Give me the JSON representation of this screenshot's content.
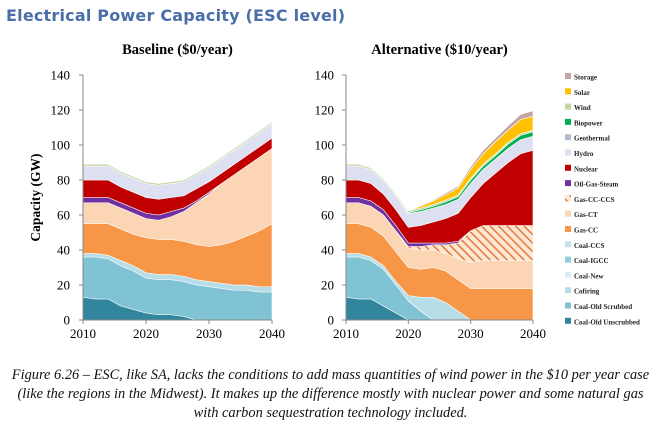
{
  "page": {
    "title": "Electrical Power Capacity (ESC level)",
    "caption": "Figure 6.26 – ESC, like SA, lacks the conditions to add mass quantities of wind power in the $10 per year case (like the regions in the Midwest). It makes up the difference mostly with nuclear power and some natural gas with carbon sequestration technology included."
  },
  "chart_data": [
    {
      "type": "area",
      "stacked": true,
      "title": "Baseline ($0/year)",
      "xlabel": "",
      "ylabel": "Capacity (GW)",
      "xlim": [
        2010,
        2040
      ],
      "ylim": [
        0,
        140
      ],
      "xticks": [
        2010,
        2020,
        2030,
        2040
      ],
      "yticks": [
        0,
        20,
        40,
        60,
        80,
        100,
        120,
        140
      ],
      "grid": false,
      "x": [
        2010,
        2012,
        2014,
        2016,
        2018,
        2020,
        2022,
        2024,
        2026,
        2028,
        2030,
        2032,
        2034,
        2036,
        2038,
        2040
      ],
      "series": [
        {
          "name": "Coal-Old Unscrubbed",
          "color": "#31859c",
          "values": [
            13,
            12,
            12,
            8,
            6,
            4,
            3,
            3,
            2,
            0,
            0,
            0,
            0,
            0,
            0,
            0
          ]
        },
        {
          "name": "Coal-Old Scrubbed",
          "color": "#7fc3d4",
          "values": [
            23,
            24,
            23,
            23,
            22,
            20,
            20,
            20,
            20,
            20,
            19,
            18,
            17,
            17,
            16,
            16
          ]
        },
        {
          "name": "Cofiring",
          "color": "#b7dee8",
          "values": [
            2,
            2,
            2,
            3,
            3,
            3,
            3,
            3,
            3,
            3,
            3,
            3,
            3,
            3,
            3,
            3
          ]
        },
        {
          "name": "Coal-New",
          "color": "#dbeef4",
          "values": [
            0,
            0,
            0,
            0,
            0,
            0,
            0,
            0,
            0,
            0,
            0,
            0,
            0,
            0,
            0,
            0
          ]
        },
        {
          "name": "Coal-IGCC",
          "color": "#92cddc",
          "values": [
            0,
            0,
            0,
            0,
            0,
            0,
            0,
            0,
            0,
            0,
            0,
            0,
            0,
            0,
            0,
            0
          ]
        },
        {
          "name": "Coal-CCS",
          "color": "#c5e3ec",
          "values": [
            0,
            0,
            0,
            0,
            0,
            0,
            0,
            0,
            0,
            0,
            0,
            0,
            0,
            0,
            0,
            0
          ]
        },
        {
          "name": "Gas-CC",
          "color": "#f79646",
          "values": [
            17,
            17,
            18,
            18,
            18,
            20,
            20,
            20,
            20,
            20,
            20,
            22,
            25,
            28,
            32,
            36
          ]
        },
        {
          "name": "Gas-CT",
          "color": "#fcd5b4",
          "values": [
            12,
            12,
            12,
            12,
            12,
            11,
            11,
            13,
            17,
            24,
            30,
            35,
            38,
            40,
            42,
            43
          ]
        },
        {
          "name": "Gas-CC-CCS",
          "color": "#f2b083",
          "values": [
            0,
            0,
            0,
            0,
            0,
            0,
            0,
            0,
            0,
            0,
            0,
            0,
            0,
            0,
            0,
            0
          ]
        },
        {
          "name": "Oil-Gas-Steam",
          "color": "#7030a0",
          "values": [
            3,
            3,
            3,
            3,
            3,
            3,
            3,
            3,
            2,
            1,
            1,
            0,
            0,
            0,
            0,
            0
          ]
        },
        {
          "name": "Nuclear",
          "color": "#c00000",
          "values": [
            10,
            10,
            10,
            9,
            9,
            9,
            9,
            8,
            7,
            7,
            6,
            6,
            6,
            6,
            6,
            6
          ]
        },
        {
          "name": "Hydro",
          "color": "#dde0f0",
          "values": [
            8,
            8,
            8,
            8,
            8,
            8,
            8,
            8,
            8,
            8,
            8,
            8,
            8,
            8,
            8,
            8
          ]
        },
        {
          "name": "Geothermal",
          "color": "#b0bcc8",
          "values": [
            0,
            0,
            0,
            0,
            0,
            0,
            0,
            0,
            0,
            0,
            0,
            0,
            0,
            0,
            0,
            0
          ]
        },
        {
          "name": "Biopower",
          "color": "#00b050",
          "values": [
            0,
            0,
            0,
            0,
            0,
            0,
            0,
            0,
            0,
            0,
            0,
            0,
            0,
            0,
            0,
            0
          ]
        },
        {
          "name": "Wind",
          "color": "#c3d69b",
          "values": [
            1,
            1,
            1,
            1,
            1,
            1,
            1,
            1,
            1,
            1,
            1,
            1,
            1,
            1,
            1,
            1
          ]
        },
        {
          "name": "Solar",
          "color": "#ffc000",
          "values": [
            0,
            0,
            0,
            0,
            0,
            0,
            0,
            0,
            0,
            0,
            0,
            0,
            0,
            0,
            0,
            0
          ]
        },
        {
          "name": "Storage",
          "color": "#c4a5a5",
          "values": [
            0,
            0,
            0,
            0,
            0,
            0,
            0,
            0,
            0,
            0,
            0.5,
            0.5,
            0.5,
            0.5,
            0.5,
            0.5
          ]
        }
      ]
    },
    {
      "type": "area",
      "stacked": true,
      "title": "Alternative ($10/year)",
      "xlabel": "",
      "ylabel": "",
      "xlim": [
        2010,
        2040
      ],
      "ylim": [
        0,
        140
      ],
      "xticks": [
        2010,
        2020,
        2030,
        2040
      ],
      "yticks": [
        0,
        20,
        40,
        60,
        80,
        100,
        120,
        140
      ],
      "grid": false,
      "x": [
        2010,
        2012,
        2014,
        2016,
        2018,
        2020,
        2022,
        2024,
        2026,
        2028,
        2030,
        2032,
        2034,
        2036,
        2038,
        2040
      ],
      "series": [
        {
          "name": "Coal-Old Unscrubbed",
          "color": "#31859c",
          "values": [
            13,
            12,
            12,
            8,
            4,
            0,
            0,
            0,
            0,
            0,
            0,
            0,
            0,
            0,
            0,
            0
          ]
        },
        {
          "name": "Coal-Old Scrubbed",
          "color": "#7fc3d4",
          "values": [
            23,
            24,
            22,
            21,
            16,
            11,
            5,
            0,
            0,
            0,
            0,
            0,
            0,
            0,
            0,
            0
          ]
        },
        {
          "name": "Cofiring",
          "color": "#b7dee8",
          "values": [
            2,
            2,
            2,
            2,
            2,
            3,
            8,
            13,
            10,
            5,
            0,
            0,
            0,
            0,
            0,
            0
          ]
        },
        {
          "name": "Coal-New",
          "color": "#dbeef4",
          "values": [
            0,
            0,
            0,
            0,
            0,
            0,
            0,
            0,
            0,
            0,
            0,
            0,
            0,
            0,
            0,
            0
          ]
        },
        {
          "name": "Coal-IGCC",
          "color": "#92cddc",
          "values": [
            0,
            0,
            0,
            0,
            0,
            0,
            0,
            0,
            0,
            0,
            0,
            0,
            0,
            0,
            0,
            0
          ]
        },
        {
          "name": "Coal-CCS",
          "color": "#c5e3ec",
          "values": [
            0,
            0,
            0,
            0,
            0,
            0,
            0,
            0,
            0,
            0,
            0,
            0,
            0,
            0,
            0,
            0
          ]
        },
        {
          "name": "Gas-CC",
          "color": "#f79646",
          "values": [
            17,
            17,
            17,
            17,
            17,
            16,
            16,
            17,
            18,
            18,
            18,
            18,
            18,
            18,
            18,
            18
          ]
        },
        {
          "name": "Gas-CT",
          "color": "#fcd5b4",
          "values": [
            12,
            12,
            12,
            12,
            12,
            11,
            11,
            10,
            10,
            12,
            15,
            16,
            16,
            16,
            16,
            16
          ]
        },
        {
          "name": "Gas-CC-CCS",
          "color": "#f2b083",
          "values": [
            0,
            0,
            0,
            0,
            0,
            1,
            2,
            3,
            5,
            9,
            18,
            20,
            20,
            20,
            20,
            20
          ]
        },
        {
          "name": "Oil-Gas-Steam",
          "color": "#7030a0",
          "values": [
            3,
            3,
            3,
            3,
            3,
            2,
            2,
            1,
            1,
            1,
            0,
            0,
            0,
            0,
            0,
            0
          ]
        },
        {
          "name": "Nuclear",
          "color": "#c00000",
          "values": [
            10,
            10,
            10,
            9,
            9,
            9,
            10,
            12,
            14,
            16,
            19,
            24,
            30,
            36,
            41,
            43
          ]
        },
        {
          "name": "Hydro",
          "color": "#dde0f0",
          "values": [
            8,
            8,
            8,
            8,
            8,
            8,
            8,
            8,
            8,
            8,
            8,
            8,
            8,
            8,
            8,
            8
          ]
        },
        {
          "name": "Geothermal",
          "color": "#b0bcc8",
          "values": [
            0,
            0,
            0,
            0,
            0,
            0,
            0,
            0,
            0,
            0,
            0,
            0,
            0,
            0,
            0,
            0
          ]
        },
        {
          "name": "Biopower",
          "color": "#00b050",
          "values": [
            0,
            0,
            0,
            0,
            0,
            0.5,
            1,
            1,
            1.5,
            1.5,
            2,
            2,
            2,
            2.5,
            2.5,
            2.5
          ]
        },
        {
          "name": "Wind",
          "color": "#c3d69b",
          "values": [
            1,
            1,
            1,
            1,
            1,
            1,
            1,
            1,
            1,
            1,
            1,
            1,
            1,
            1,
            1,
            1
          ]
        },
        {
          "name": "Solar",
          "color": "#ffc000",
          "values": [
            0,
            0,
            0,
            0,
            0,
            0,
            1,
            2,
            3,
            4,
            5,
            6,
            7,
            7,
            8,
            8
          ]
        },
        {
          "name": "Storage",
          "color": "#c4a5a5",
          "values": [
            0,
            0,
            0,
            0,
            0,
            0,
            0.5,
            0.5,
            1,
            1,
            1.5,
            2,
            2,
            2.5,
            3,
            3
          ]
        }
      ]
    }
  ],
  "legend": {
    "placement": "right",
    "items": [
      {
        "label": "Storage",
        "color": "#c4a5a5"
      },
      {
        "label": "Solar",
        "color": "#ffc000"
      },
      {
        "label": "Wind",
        "color": "#c3d69b"
      },
      {
        "label": "Biopower",
        "color": "#00b050"
      },
      {
        "label": "Geothermal",
        "color": "#b0bcc8"
      },
      {
        "label": "Hydro",
        "color": "#dde0f0"
      },
      {
        "label": "Nuclear",
        "color": "#c00000"
      },
      {
        "label": "Oil-Gas-Steam",
        "color": "#7030a0"
      },
      {
        "label": "Gas-CC-CCS",
        "color": "#f2b083"
      },
      {
        "label": "Gas-CT",
        "color": "#fcd5b4"
      },
      {
        "label": "Gas-CC",
        "color": "#f79646"
      },
      {
        "label": "Coal-CCS",
        "color": "#c5e3ec"
      },
      {
        "label": "Coal-IGCC",
        "color": "#92cddc"
      },
      {
        "label": "Coal-New",
        "color": "#dbeef4"
      },
      {
        "label": "Cofiring",
        "color": "#b7dee8"
      },
      {
        "label": "Coal-Old Scrubbed",
        "color": "#7fc3d4"
      },
      {
        "label": "Coal-Old Unscrubbed",
        "color": "#31859c"
      }
    ]
  }
}
